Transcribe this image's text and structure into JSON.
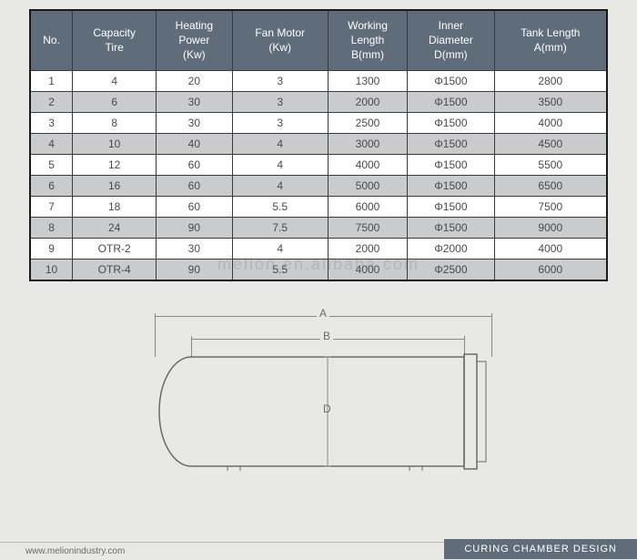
{
  "table": {
    "columns": [
      "No.",
      "Capacity\nTire",
      "Heating\nPower\n(Kw)",
      "Fan Motor\n(Kw)",
      "Working\nLength\nB(mm)",
      "Inner\nDiameter\nD(mm)",
      "Tank Length\nA(mm)"
    ],
    "rows": [
      [
        "1",
        "4",
        "20",
        "3",
        "1300",
        "Φ1500",
        "2800"
      ],
      [
        "2",
        "6",
        "30",
        "3",
        "2000",
        "Φ1500",
        "3500"
      ],
      [
        "3",
        "8",
        "30",
        "3",
        "2500",
        "Φ1500",
        "4000"
      ],
      [
        "4",
        "10",
        "40",
        "4",
        "3000",
        "Φ1500",
        "4500"
      ],
      [
        "5",
        "12",
        "60",
        "4",
        "4000",
        "Φ1500",
        "5500"
      ],
      [
        "6",
        "16",
        "60",
        "4",
        "5000",
        "Φ1500",
        "6500"
      ],
      [
        "7",
        "18",
        "60",
        "5.5",
        "6000",
        "Φ1500",
        "7500"
      ],
      [
        "8",
        "24",
        "90",
        "7.5",
        "7500",
        "Φ1500",
        "9000"
      ],
      [
        "9",
        "OTR-2",
        "30",
        "4",
        "2000",
        "Φ2000",
        "4000"
      ],
      [
        "10",
        "OTR-4",
        "90",
        "5.5",
        "4000",
        "Φ2500",
        "6000"
      ]
    ],
    "header_bg": "#5f6c79",
    "header_fg": "#ffffff",
    "row_even_bg": "#ffffff",
    "row_odd_bg": "#c9cbcc",
    "border_color": "#3a3a3a"
  },
  "diagram": {
    "labels": {
      "A": "A",
      "B": "B",
      "D": "D"
    },
    "tank_stroke": "#6a6a6a",
    "tank_fill": "none",
    "dim_color": "#888888"
  },
  "footer": {
    "url": "www.melionindustry.com",
    "title": "CURING CHAMBER DESIGN"
  },
  "watermark": "melion.en.alibaba.com",
  "colors": {
    "page_bg": "#e8e8e6"
  }
}
